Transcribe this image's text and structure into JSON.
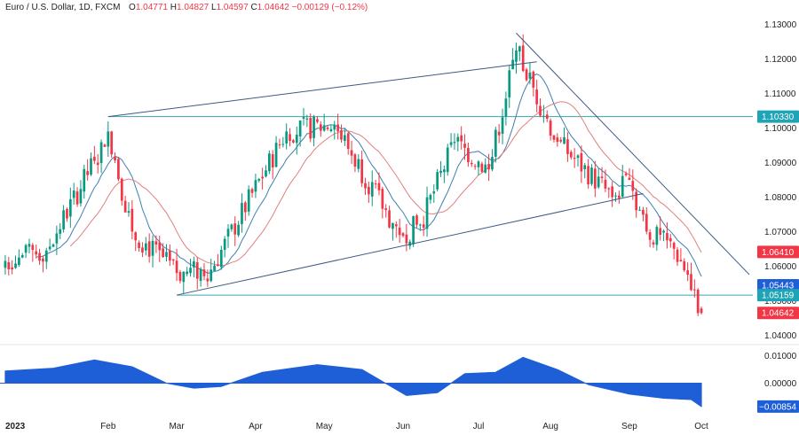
{
  "legend": {
    "symbol": "Euro / U.S. Dollar, 1D, FXCM",
    "open_label": "O",
    "open": "1.04771",
    "high_label": "H",
    "high": "1.04827",
    "low_label": "L",
    "low": "1.04597",
    "close_label": "C",
    "close": "1.04642",
    "change": "−0.00129 (−0.12%)"
  },
  "colors": {
    "up": "#089981",
    "down": "#f23645",
    "sma_fast": "#3f7fb0",
    "sma_slow": "#e08080",
    "trendline": "#3d5a80",
    "level_line": "#38a3b0",
    "oscillator": "#1e5fd8",
    "tag_level": "#1fa3b6",
    "tag_red": "#f23645",
    "tag_blue": "#1e5fd8"
  },
  "chart_data": [
    {
      "type": "candlestick",
      "title": "",
      "xlabel": "",
      "ylabel": "",
      "ylim": [
        1.0375,
        1.1335
      ],
      "y_ticks": [
        "1.13000",
        "1.12000",
        "1.11000",
        "1.10000",
        "1.09000",
        "1.08000",
        "1.07000",
        "1.06000",
        "1.05000",
        "1.04000"
      ],
      "y_tick_values": [
        1.13,
        1.12,
        1.11,
        1.1,
        1.09,
        1.08,
        1.07,
        1.06,
        1.05,
        1.04
      ],
      "x_ticks": [
        {
          "label": "2023",
          "date": "2023-01-02"
        },
        {
          "label": "Feb",
          "date": "2023-02-01"
        },
        {
          "label": "Mar",
          "date": "2023-03-01"
        },
        {
          "label": "Apr",
          "date": "2023-04-03"
        },
        {
          "label": "May",
          "date": "2023-05-01"
        },
        {
          "label": "Jun",
          "date": "2023-06-01"
        },
        {
          "label": "Jul",
          "date": "2023-07-03"
        },
        {
          "label": "Aug",
          "date": "2023-08-01"
        },
        {
          "label": "Sep",
          "date": "2023-09-01"
        },
        {
          "label": "Oct",
          "date": "2023-10-02"
        }
      ],
      "series": [
        {
          "kind": "ohlc",
          "first_date": "2022-12-21",
          "trading_days_only": true,
          "close_pivots": [
            {
              "date": "2022-12-21",
              "close": 1.0615
            },
            {
              "date": "2023-01-06",
              "close": 1.0645
            },
            {
              "date": "2023-01-26",
              "close": 1.0905
            },
            {
              "date": "2023-02-01",
              "close": 1.099
            },
            {
              "date": "2023-02-10",
              "close": 1.07
            },
            {
              "date": "2023-03-01",
              "close": 1.058
            },
            {
              "date": "2023-03-15",
              "close": 1.059
            },
            {
              "date": "2023-04-14",
              "close": 1.099
            },
            {
              "date": "2023-05-04",
              "close": 1.101
            },
            {
              "date": "2023-05-31",
              "close": 1.069
            },
            {
              "date": "2023-06-08",
              "close": 1.072
            },
            {
              "date": "2023-06-22",
              "close": 1.096
            },
            {
              "date": "2023-07-06",
              "close": 1.088
            },
            {
              "date": "2023-07-18",
              "close": 1.1225
            },
            {
              "date": "2023-08-03",
              "close": 1.096
            },
            {
              "date": "2023-08-25",
              "close": 1.08
            },
            {
              "date": "2023-09-01",
              "close": 1.085
            },
            {
              "date": "2023-09-08",
              "close": 1.07
            },
            {
              "date": "2023-09-20",
              "close": 1.065
            },
            {
              "date": "2023-09-26",
              "close": 1.0575
            },
            {
              "date": "2023-09-28",
              "close": 1.053
            },
            {
              "date": "2023-10-02",
              "close": 1.0464
            }
          ]
        },
        {
          "kind": "sma",
          "period": 10
        },
        {
          "kind": "sma",
          "period": 20
        }
      ],
      "trendlines": [
        {
          "from": [
            "2023-02-01",
            1.1033
          ],
          "to": [
            "2023-07-26",
            1.1192
          ]
        },
        {
          "from": [
            "2023-03-01",
            1.0516
          ],
          "to": [
            "2023-09-07",
            1.081
          ]
        },
        {
          "from": [
            "2023-07-18",
            1.1275
          ],
          "to": [
            "2023-10-20",
            1.0575
          ]
        }
      ],
      "horizontal_levels": [
        {
          "value": 1.1033,
          "label": "1.10330",
          "from": "2023-02-01"
        },
        {
          "value": 1.0516,
          "label": "1.05159",
          "from": "2023-03-01"
        }
      ],
      "price_tags": [
        {
          "value": 1.1033,
          "label": "1.10330",
          "color_key": "tag_level"
        },
        {
          "value": 1.0641,
          "label": "1.06410",
          "color_key": "tag_red"
        },
        {
          "value": 1.05443,
          "label": "1.05443",
          "color_key": "tag_blue"
        },
        {
          "value": 1.05159,
          "label": "1.05159",
          "color_key": "tag_level"
        },
        {
          "value": 1.04642,
          "label": "1.04642",
          "color_key": "tag_red"
        }
      ]
    },
    {
      "type": "area",
      "title": "",
      "ylim": [
        -0.0115,
        0.0138
      ],
      "y_ticks": [
        "0.01000",
        "0.00000"
      ],
      "y_tick_values": [
        0.01,
        0.0
      ],
      "last_value_label": "−0.00854",
      "last_value": -0.00854,
      "points": [
        {
          "date": "2022-12-21",
          "value": 0.0045
        },
        {
          "date": "2023-01-10",
          "value": 0.0055
        },
        {
          "date": "2023-01-26",
          "value": 0.0085
        },
        {
          "date": "2023-02-10",
          "value": 0.006
        },
        {
          "date": "2023-02-24",
          "value": 0.0
        },
        {
          "date": "2023-03-08",
          "value": -0.0018
        },
        {
          "date": "2023-03-20",
          "value": -0.0012
        },
        {
          "date": "2023-04-05",
          "value": 0.004
        },
        {
          "date": "2023-04-27",
          "value": 0.0068
        },
        {
          "date": "2023-05-16",
          "value": 0.005
        },
        {
          "date": "2023-06-02",
          "value": -0.0045
        },
        {
          "date": "2023-06-15",
          "value": -0.0035
        },
        {
          "date": "2023-06-27",
          "value": 0.0035
        },
        {
          "date": "2023-07-08",
          "value": 0.004
        },
        {
          "date": "2023-07-20",
          "value": 0.0095
        },
        {
          "date": "2023-08-03",
          "value": 0.005
        },
        {
          "date": "2023-08-16",
          "value": -0.0005
        },
        {
          "date": "2023-09-01",
          "value": -0.004
        },
        {
          "date": "2023-09-15",
          "value": -0.0055
        },
        {
          "date": "2023-09-27",
          "value": -0.006
        },
        {
          "date": "2023-10-02",
          "value": -0.00854
        }
      ]
    }
  ]
}
